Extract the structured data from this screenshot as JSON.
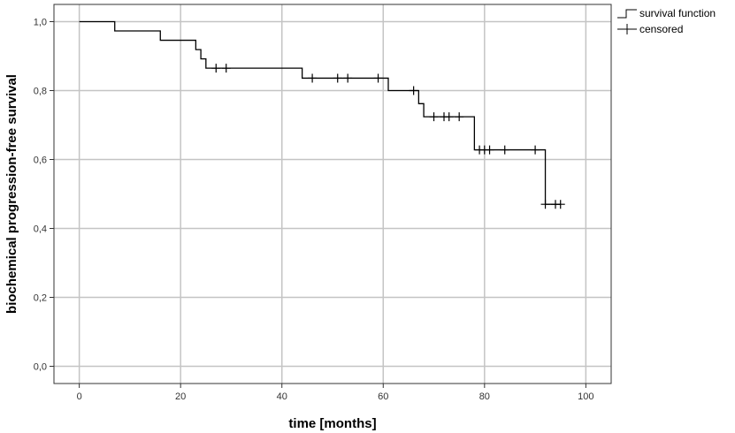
{
  "chart_data": {
    "type": "line",
    "subtype": "kaplan-meier",
    "title": "",
    "xlabel": "time [months]",
    "ylabel": "biochemical progression-free survival",
    "xlim": [
      -5,
      105
    ],
    "ylim": [
      -0.05,
      1.05
    ],
    "x_ticks": [
      0,
      20,
      40,
      60,
      80,
      100
    ],
    "y_ticks": [
      0.0,
      0.2,
      0.4,
      0.6,
      0.8,
      1.0
    ],
    "x_tick_labels": [
      "0",
      "20",
      "40",
      "60",
      "80",
      "100"
    ],
    "y_tick_labels": [
      "0,0",
      "0,2",
      "0,4",
      "0,6",
      "0,8",
      "1,0"
    ],
    "grid": true,
    "legend_position": "top-right",
    "series": [
      {
        "name": "survival function",
        "step": true,
        "color": "#000000",
        "x": [
          0,
          7,
          16,
          23,
          24,
          25,
          44,
          61,
          67,
          68,
          78,
          92,
          95
        ],
        "y": [
          1.0,
          0.973,
          0.946,
          0.919,
          0.892,
          0.865,
          0.836,
          0.8,
          0.762,
          0.724,
          0.628,
          0.47,
          0.47
        ]
      },
      {
        "name": "censored",
        "marker": "plus",
        "color": "#000000",
        "x": [
          27,
          29,
          46,
          51,
          53,
          59,
          66,
          70,
          72,
          73,
          75,
          79,
          80,
          81,
          84,
          90,
          92,
          94,
          95
        ],
        "y": [
          0.865,
          0.865,
          0.836,
          0.836,
          0.836,
          0.836,
          0.8,
          0.724,
          0.724,
          0.724,
          0.724,
          0.628,
          0.628,
          0.628,
          0.628,
          0.628,
          0.47,
          0.47,
          0.47
        ]
      }
    ]
  }
}
